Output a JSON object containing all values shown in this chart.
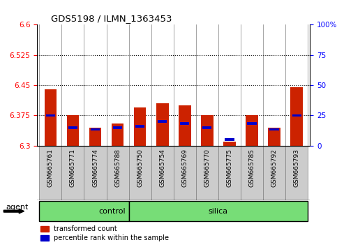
{
  "title": "GDS5198 / ILMN_1363453",
  "samples": [
    "GSM665761",
    "GSM665771",
    "GSM665774",
    "GSM665788",
    "GSM665750",
    "GSM665754",
    "GSM665769",
    "GSM665770",
    "GSM665775",
    "GSM665785",
    "GSM665792",
    "GSM665793"
  ],
  "red_values": [
    6.44,
    6.375,
    6.345,
    6.355,
    6.395,
    6.405,
    6.4,
    6.375,
    6.31,
    6.375,
    6.345,
    6.445
  ],
  "blue_values": [
    6.375,
    6.345,
    6.34,
    6.345,
    6.348,
    6.36,
    6.355,
    6.345,
    6.315,
    6.355,
    6.34,
    6.375
  ],
  "ymin": 6.3,
  "ymax": 6.6,
  "yticks_left": [
    6.3,
    6.375,
    6.45,
    6.525,
    6.6
  ],
  "yticks_right_vals": [
    0,
    25,
    50,
    75,
    100
  ],
  "yticks_right_labels": [
    "0",
    "25",
    "50",
    "75",
    "100%"
  ],
  "control_count": 4,
  "total_count": 12,
  "agent_label": "agent",
  "bar_color_red": "#CC2200",
  "bar_color_blue": "#0000CC",
  "bar_width": 0.55,
  "background_color": "#ffffff",
  "plot_bg": "#ffffff",
  "tick_label_area_bg": "#cccccc",
  "group_bg": "#77DD77",
  "grid_color": "#000000",
  "legend_red_label": "transformed count",
  "legend_blue_label": "percentile rank within the sample"
}
